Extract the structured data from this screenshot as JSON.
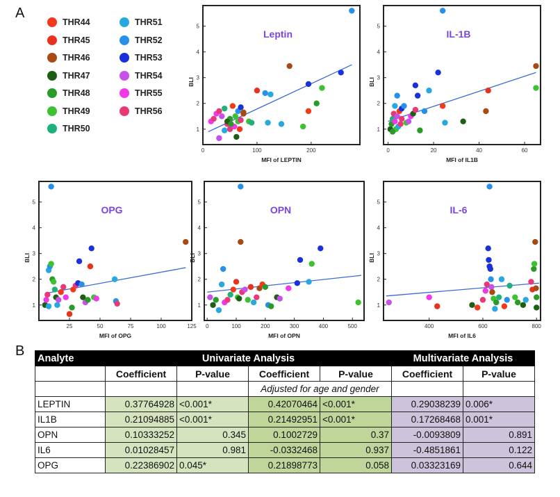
{
  "panels": {
    "a": "A",
    "b": "B"
  },
  "legend": [
    {
      "label": "THR44",
      "color": "#f03a1a"
    },
    {
      "label": "THR45",
      "color": "#e8321e"
    },
    {
      "label": "THR46",
      "color": "#a84a14"
    },
    {
      "label": "THR47",
      "color": "#1e5e14"
    },
    {
      "label": "THR48",
      "color": "#2a9a28"
    },
    {
      "label": "THR49",
      "color": "#3cc230"
    },
    {
      "label": "THR50",
      "color": "#20b07c"
    },
    {
      "label": "THR51",
      "color": "#28a8e0"
    },
    {
      "label": "THR52",
      "color": "#2890e8"
    },
    {
      "label": "THR53",
      "color": "#1a30d8"
    },
    {
      "label": "THR54",
      "color": "#c850e8"
    },
    {
      "label": "THR55",
      "color": "#f038e8"
    },
    {
      "label": "THR56",
      "color": "#e83878"
    }
  ],
  "chart_data": [
    {
      "type": "scatter",
      "title": "Leptin",
      "xlabel": "MFI of LEPTIN",
      "ylabel": "BLI",
      "xlim": [
        0,
        290
      ],
      "ylim": [
        0.4,
        5.8
      ],
      "xticks": [
        "0",
        "100",
        "200"
      ],
      "xtick_values": [
        0,
        100,
        200
      ],
      "yticks": [
        "1",
        "2",
        "3",
        "4",
        "5"
      ],
      "trendline": [
        [
          10,
          0.9
        ],
        [
          275,
          3.5
        ]
      ],
      "points": [
        [
          15,
          1.3,
          11
        ],
        [
          20,
          1.4,
          12
        ],
        [
          25,
          1.6,
          11
        ],
        [
          30,
          1.7,
          12
        ],
        [
          35,
          1.5,
          10
        ],
        [
          40,
          1.8,
          6
        ],
        [
          45,
          1.2,
          12
        ],
        [
          50,
          1.4,
          4
        ],
        [
          55,
          1.9,
          0
        ],
        [
          60,
          1.5,
          5
        ],
        [
          65,
          1.7,
          8
        ],
        [
          70,
          1.85,
          9
        ],
        [
          75,
          1.6,
          2
        ],
        [
          50,
          1.0,
          12
        ],
        [
          58,
          1.1,
          11
        ],
        [
          40,
          0.95,
          7
        ],
        [
          45,
          1.3,
          3
        ],
        [
          52,
          1.2,
          4
        ],
        [
          65,
          1.3,
          5
        ],
        [
          68,
          1.0,
          0
        ],
        [
          62,
          0.7,
          3
        ],
        [
          30,
          0.65,
          10
        ],
        [
          85,
          1.3,
          5
        ],
        [
          90,
          1.25,
          6
        ],
        [
          70,
          1.35,
          12
        ],
        [
          75,
          1.65,
          2
        ],
        [
          100,
          2.5,
          1
        ],
        [
          115,
          2.4,
          8
        ],
        [
          125,
          2.35,
          7
        ],
        [
          120,
          1.25,
          7
        ],
        [
          145,
          1.2,
          7
        ],
        [
          185,
          1.1,
          5
        ],
        [
          195,
          1.7,
          0
        ],
        [
          210,
          2.0,
          4
        ],
        [
          220,
          2.6,
          5
        ],
        [
          195,
          2.75,
          9
        ],
        [
          255,
          3.2,
          9
        ],
        [
          160,
          3.45,
          2
        ],
        [
          275,
          5.6,
          8
        ]
      ]
    },
    {
      "type": "scatter",
      "title": "IL-1B",
      "xlabel": "MFI of IL1B",
      "ylabel": "BLI",
      "xlim": [
        -2,
        67
      ],
      "ylim": [
        0.4,
        5.8
      ],
      "xticks": [
        "0",
        "20",
        "40",
        "60"
      ],
      "xtick_values": [
        0,
        20,
        40,
        60
      ],
      "yticks": [
        "1",
        "2",
        "3",
        "4",
        "5"
      ],
      "trendline": [
        [
          0,
          1.3
        ],
        [
          65,
          3.2
        ]
      ],
      "points": [
        [
          1,
          1.0,
          3
        ],
        [
          1.5,
          1.2,
          4
        ],
        [
          2,
          1.4,
          6
        ],
        [
          2.5,
          1.6,
          12
        ],
        [
          3,
          1.3,
          11
        ],
        [
          3.5,
          1.0,
          5
        ],
        [
          4,
          1.5,
          10
        ],
        [
          4.5,
          1.1,
          7
        ],
        [
          5,
          1.7,
          0
        ],
        [
          5.5,
          1.2,
          12
        ],
        [
          3,
          1.9,
          7
        ],
        [
          4,
          2.3,
          8
        ],
        [
          6,
          1.8,
          9
        ],
        [
          7,
          1.9,
          8
        ],
        [
          8,
          1.25,
          5
        ],
        [
          9,
          1.3,
          10
        ],
        [
          10,
          1.5,
          11
        ],
        [
          11,
          1.6,
          3
        ],
        [
          12,
          1.75,
          12
        ],
        [
          13,
          2.3,
          9
        ],
        [
          14,
          0.95,
          4
        ],
        [
          16,
          1.7,
          8
        ],
        [
          18,
          2.5,
          7
        ],
        [
          22,
          3.2,
          9
        ],
        [
          24,
          1.9,
          0
        ],
        [
          25,
          1.25,
          7
        ],
        [
          33,
          1.3,
          3
        ],
        [
          43,
          1.7,
          2
        ],
        [
          44,
          2.5,
          1
        ],
        [
          65,
          3.45,
          2
        ],
        [
          65,
          2.6,
          5
        ],
        [
          24,
          5.6,
          8
        ],
        [
          6,
          1.4,
          12
        ],
        [
          2,
          0.9,
          4
        ],
        [
          12,
          2.7,
          9
        ]
      ]
    },
    {
      "type": "scatter",
      "title": "OPG",
      "xlabel": "MFI of OPG",
      "ylabel": "BLI",
      "xlim": [
        0,
        125
      ],
      "ylim": [
        0.4,
        5.8
      ],
      "xticks": [
        "25",
        "50",
        "75",
        "100",
        "125"
      ],
      "xtick_values": [
        25,
        50,
        75,
        100,
        125
      ],
      "yticks": [
        "1",
        "2",
        "3",
        "4",
        "5"
      ],
      "trendline": [
        [
          5,
          1.45
        ],
        [
          120,
          2.45
        ]
      ],
      "points": [
        [
          5,
          1.0,
          3
        ],
        [
          6,
          1.2,
          11
        ],
        [
          7,
          1.4,
          12
        ],
        [
          8,
          2.35,
          7
        ],
        [
          9,
          2.5,
          8
        ],
        [
          10,
          2.6,
          5
        ],
        [
          11,
          2.0,
          4
        ],
        [
          12,
          1.9,
          5
        ],
        [
          13,
          1.6,
          6
        ],
        [
          14,
          1.3,
          3
        ],
        [
          15,
          1.0,
          7
        ],
        [
          16,
          1.2,
          10
        ],
        [
          18,
          1.5,
          0
        ],
        [
          20,
          1.7,
          12
        ],
        [
          22,
          1.3,
          11
        ],
        [
          25,
          0.65,
          1
        ],
        [
          27,
          0.9,
          4
        ],
        [
          28,
          1.6,
          0
        ],
        [
          30,
          1.75,
          12
        ],
        [
          32,
          1.85,
          9
        ],
        [
          33,
          2.7,
          9
        ],
        [
          35,
          1.8,
          8
        ],
        [
          36,
          1.3,
          3
        ],
        [
          38,
          1.1,
          10
        ],
        [
          40,
          1.2,
          4
        ],
        [
          42,
          2.5,
          1
        ],
        [
          43,
          3.2,
          9
        ],
        [
          45,
          1.3,
          5
        ],
        [
          47,
          1.25,
          11
        ],
        [
          62,
          2.0,
          7
        ],
        [
          63,
          1.15,
          8
        ],
        [
          64,
          1.05,
          12
        ],
        [
          120,
          3.45,
          2
        ],
        [
          10,
          5.6,
          8
        ],
        [
          8,
          0.95,
          7
        ]
      ]
    },
    {
      "type": "scatter",
      "title": "OPN",
      "xlabel": "MFI of OPN",
      "ylabel": "BLI",
      "xlim": [
        -10,
        540
      ],
      "ylim": [
        0.4,
        5.8
      ],
      "xticks": [
        "0",
        "100",
        "200",
        "300",
        "400",
        "500"
      ],
      "xtick_values": [
        0,
        100,
        200,
        300,
        400,
        500
      ],
      "yticks": [
        "1",
        "2",
        "3",
        "4",
        "5"
      ],
      "trendline": [
        [
          0,
          1.5
        ],
        [
          530,
          2.15
        ]
      ],
      "points": [
        [
          10,
          1.3,
          10
        ],
        [
          20,
          1.0,
          3
        ],
        [
          30,
          1.2,
          4
        ],
        [
          40,
          0.8,
          7
        ],
        [
          50,
          1.8,
          7
        ],
        [
          55,
          2.4,
          8
        ],
        [
          60,
          1.1,
          11
        ],
        [
          70,
          1.2,
          12
        ],
        [
          80,
          1.4,
          6
        ],
        [
          90,
          1.6,
          0
        ],
        [
          100,
          1.9,
          1
        ],
        [
          105,
          1.3,
          5
        ],
        [
          110,
          1.25,
          3
        ],
        [
          115,
          3.45,
          2
        ],
        [
          120,
          1.5,
          12
        ],
        [
          130,
          1.6,
          10
        ],
        [
          140,
          1.2,
          5
        ],
        [
          150,
          1.7,
          1
        ],
        [
          160,
          1.1,
          7
        ],
        [
          170,
          1.3,
          12
        ],
        [
          180,
          1.65,
          2
        ],
        [
          190,
          1.8,
          0
        ],
        [
          200,
          1.7,
          4
        ],
        [
          210,
          1.0,
          8
        ],
        [
          220,
          0.95,
          4
        ],
        [
          240,
          1.3,
          3
        ],
        [
          250,
          1.25,
          10
        ],
        [
          280,
          1.65,
          11
        ],
        [
          310,
          1.85,
          9
        ],
        [
          320,
          2.75,
          9
        ],
        [
          350,
          1.9,
          7
        ],
        [
          360,
          2.6,
          5
        ],
        [
          390,
          3.2,
          9
        ],
        [
          520,
          1.1,
          5
        ],
        [
          115,
          5.6,
          8
        ]
      ]
    },
    {
      "type": "scatter",
      "title": "IL-6",
      "xlabel": "MFI of IL6",
      "ylabel": "BLI",
      "xlim": [
        230,
        815
      ],
      "ylim": [
        0.4,
        5.8
      ],
      "xticks": [
        "400",
        "600",
        "800"
      ],
      "xtick_values": [
        400,
        600,
        800
      ],
      "yticks": [
        "1",
        "2",
        "3",
        "4",
        "5"
      ],
      "trendline": [
        [
          240,
          1.35
        ],
        [
          810,
          1.85
        ]
      ],
      "points": [
        [
          250,
          1.1,
          10
        ],
        [
          400,
          1.3,
          11
        ],
        [
          430,
          0.95,
          1
        ],
        [
          560,
          1.0,
          3
        ],
        [
          580,
          0.9,
          0
        ],
        [
          600,
          1.2,
          12
        ],
        [
          610,
          1.55,
          11
        ],
        [
          615,
          1.8,
          12
        ],
        [
          620,
          3.2,
          9
        ],
        [
          622,
          2.75,
          9
        ],
        [
          625,
          2.5,
          9
        ],
        [
          628,
          2.4,
          9
        ],
        [
          630,
          2.0,
          8
        ],
        [
          632,
          1.7,
          10
        ],
        [
          635,
          1.5,
          2
        ],
        [
          640,
          1.25,
          5
        ],
        [
          645,
          0.85,
          7
        ],
        [
          650,
          1.1,
          4
        ],
        [
          660,
          1.3,
          6
        ],
        [
          670,
          2.0,
          7
        ],
        [
          680,
          0.95,
          0
        ],
        [
          690,
          1.2,
          8
        ],
        [
          700,
          1.75,
          6
        ],
        [
          720,
          1.3,
          5
        ],
        [
          730,
          1.1,
          4
        ],
        [
          750,
          1.0,
          3
        ],
        [
          760,
          1.2,
          7
        ],
        [
          780,
          1.9,
          12
        ],
        [
          785,
          1.6,
          1
        ],
        [
          790,
          2.4,
          4
        ],
        [
          792,
          2.6,
          5
        ],
        [
          795,
          3.45,
          2
        ],
        [
          798,
          1.65,
          2
        ],
        [
          800,
          1.3,
          4
        ],
        [
          625,
          5.6,
          8
        ],
        [
          800,
          0.9,
          3
        ]
      ]
    }
  ],
  "table": {
    "header1": [
      "Analyte",
      "Univariate Analysis",
      "Multivariate Analysis"
    ],
    "header2": [
      "Coefficient",
      "P-value",
      "Coefficient",
      "P-value",
      "Coefficient",
      "P-value"
    ],
    "note": "Adjusted for age and gender",
    "rows": [
      [
        "LEPTIN",
        "0.37764928",
        "<0.001*",
        "0.42070464",
        "<0.001*",
        "0.29038239",
        "0.006*"
      ],
      [
        "IL1B",
        "0.21094885",
        "<0.001*",
        "0.21492951",
        "<0.001*",
        "0.17268468",
        "0.001*"
      ],
      [
        "OPN",
        "0.10333252",
        "0.345",
        "0.1002729",
        "0.37",
        "-0.0093809",
        "0.891"
      ],
      [
        "IL6",
        "0.01028457",
        "0.981",
        "-0.0332468",
        "0.937",
        "-0.4851861",
        "0.122"
      ],
      [
        "OPG",
        "0.22386902",
        "0.045*",
        "0.21898773",
        "0.058",
        "0.03323169",
        "0.644"
      ]
    ]
  }
}
